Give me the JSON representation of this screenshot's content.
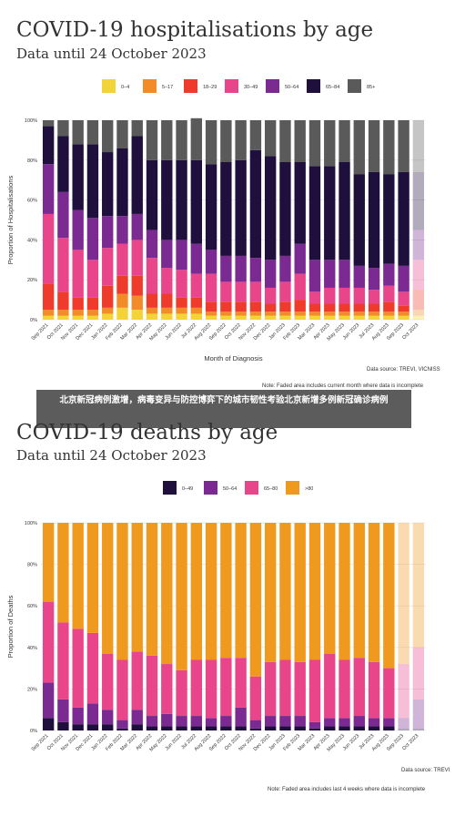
{
  "banner": {
    "text": "北京新冠病例激增，病毒变异与防控博弈下的城市韧性考验北京新增多例新冠确诊病例"
  },
  "categories": [
    "Sep 2021",
    "Oct 2021",
    "Nov 2021",
    "Dec 2021",
    "Jan 2022",
    "Feb 2022",
    "Mar 2022",
    "Apr 2022",
    "May 2022",
    "Jun 2022",
    "Jul 2022",
    "Aug 2022",
    "Sep 2022",
    "Oct 2022",
    "Nov 2022",
    "Dec 2022",
    "Jan 2023",
    "Feb 2023",
    "Mar 2023",
    "Apr 2023",
    "May 2023",
    "Jun 2023",
    "Jul 2023",
    "Aug 2023",
    "Sep 2023",
    "Oct 2023"
  ],
  "chart_data": [
    {
      "type": "bar",
      "stacked": true,
      "title": "COVID-19 hospitalisations by age",
      "subtitle": "Data until 24 October 2023",
      "xlabel": "Month of Diagnosis",
      "ylabel": "Proportion of Hospitalisations",
      "ylim": [
        0,
        100
      ],
      "yticks": [
        "0%",
        "20%",
        "40%",
        "60%",
        "80%",
        "100%"
      ],
      "source": "Data source: TREVI, VICNISS",
      "note": "Note: Faded area includes current month where data is incomplete",
      "faded_last": true,
      "legend_position": "top-center",
      "series": [
        {
          "name": "0–4",
          "color": "#f2d43a",
          "values": [
            2,
            2,
            2,
            2,
            3,
            6,
            5,
            3,
            3,
            3,
            3,
            2,
            2,
            2,
            2,
            2,
            2,
            2,
            2,
            2,
            2,
            2,
            2,
            2,
            2,
            2
          ]
        },
        {
          "name": "5–17",
          "color": "#f28c28",
          "values": [
            3,
            3,
            3,
            3,
            3,
            7,
            7,
            3,
            3,
            3,
            3,
            2,
            2,
            2,
            2,
            2,
            2,
            2,
            2,
            2,
            2,
            2,
            2,
            2,
            2,
            3
          ]
        },
        {
          "name": "18–29",
          "color": "#ef3b2c",
          "values": [
            13,
            9,
            6,
            6,
            11,
            9,
            10,
            7,
            7,
            5,
            5,
            5,
            5,
            5,
            5,
            4,
            5,
            6,
            4,
            4,
            4,
            4,
            4,
            5,
            3,
            10
          ]
        },
        {
          "name": "30–49",
          "color": "#e8458b",
          "values": [
            35,
            27,
            24,
            19,
            19,
            16,
            18,
            18,
            13,
            14,
            12,
            14,
            10,
            10,
            10,
            8,
            10,
            13,
            6,
            8,
            8,
            8,
            7,
            8,
            7,
            15
          ]
        },
        {
          "name": "50–64",
          "color": "#7b2a91",
          "values": [
            25,
            23,
            20,
            21,
            16,
            14,
            13,
            14,
            14,
            15,
            15,
            12,
            13,
            13,
            12,
            14,
            13,
            15,
            16,
            14,
            14,
            11,
            11,
            11,
            13,
            15
          ]
        },
        {
          "name": "65–84",
          "color": "#1f0f3d",
          "values": [
            19,
            28,
            33,
            37,
            32,
            34,
            39,
            35,
            40,
            40,
            42,
            43,
            47,
            48,
            54,
            52,
            47,
            41,
            47,
            47,
            49,
            46,
            48,
            45,
            47,
            29
          ]
        },
        {
          "name": "85+",
          "color": "#5a5a5a",
          "values": [
            3,
            8,
            12,
            12,
            16,
            14,
            8,
            20,
            20,
            20,
            21,
            22,
            21,
            20,
            15,
            18,
            21,
            21,
            23,
            23,
            21,
            27,
            26,
            27,
            26,
            26
          ]
        }
      ]
    },
    {
      "type": "bar",
      "stacked": true,
      "title": "COVID-19 deaths by age",
      "subtitle": "Data until 24 October 2023",
      "xlabel": "",
      "ylabel": "Proportion of Deaths",
      "ylim": [
        0,
        100
      ],
      "yticks": [
        "0%",
        "20%",
        "40%",
        "60%",
        "80%",
        "100%"
      ],
      "source": "Data source: TREVI",
      "note": "Note: Faded area includes last 4 weeks where data is incomplete",
      "faded_last": 2,
      "legend_position": "top-center",
      "series": [
        {
          "name": "0–49",
          "color": "#1f0f3d",
          "values": [
            6,
            4,
            3,
            3,
            3,
            1,
            3,
            2,
            2,
            2,
            2,
            2,
            2,
            2,
            1,
            2,
            2,
            2,
            1,
            2,
            2,
            2,
            2,
            2,
            1,
            1
          ]
        },
        {
          "name": "50–64",
          "color": "#7b2a91",
          "values": [
            17,
            11,
            8,
            10,
            7,
            4,
            7,
            5,
            6,
            5,
            5,
            4,
            5,
            9,
            4,
            5,
            5,
            5,
            3,
            4,
            4,
            5,
            4,
            4,
            5,
            14
          ]
        },
        {
          "name": "65–80",
          "color": "#e8458b",
          "values": [
            39,
            37,
            38,
            34,
            27,
            29,
            28,
            29,
            24,
            22,
            27,
            28,
            28,
            24,
            21,
            26,
            27,
            26,
            30,
            31,
            28,
            28,
            27,
            24,
            26,
            25
          ]
        },
        {
          "name": ">80",
          "color": "#f0991f",
          "values": [
            38,
            48,
            51,
            53,
            63,
            66,
            62,
            64,
            68,
            71,
            66,
            66,
            65,
            65,
            74,
            67,
            66,
            67,
            66,
            63,
            66,
            65,
            67,
            70,
            68,
            60
          ]
        }
      ]
    }
  ]
}
